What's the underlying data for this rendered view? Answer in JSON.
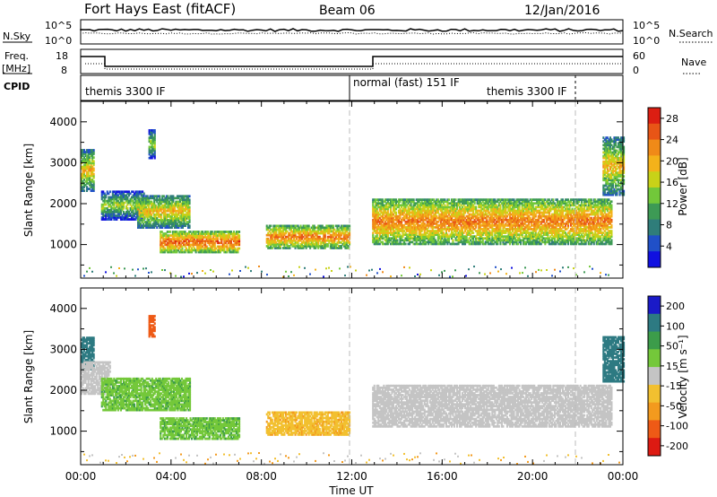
{
  "header": {
    "station": "Fort Hays East (fitACF)",
    "beam": "Beam 06",
    "date": "12/Jan/2016"
  },
  "top_panels": {
    "nsky_label": "N.Sky",
    "nsearch_label": "N.Search",
    "noise_ticks_left": [
      "10^5",
      "10^0"
    ],
    "noise_ticks_right": [
      "10^5",
      "10^0"
    ],
    "freq_label": "Freq.",
    "freq_unit": "[MHz]",
    "freq_ticks": [
      "18",
      "8"
    ],
    "nave_label": "Nave",
    "nave_ticks": [
      "60",
      "0"
    ],
    "cpid_label": "CPID",
    "cpid_segments": [
      {
        "label": "themis 3300 IF"
      },
      {
        "label": "normal (fast) 151 IF"
      },
      {
        "label": "themis 3300 IF"
      }
    ]
  },
  "chart_data": [
    {
      "type": "heatmap",
      "title": "",
      "xlabel": "",
      "ylabel": "Slant Range [km]",
      "xlim_hours": [
        0,
        24
      ],
      "ylim_km": [
        180,
        4500
      ],
      "y_ticks": [
        1000,
        2000,
        3000,
        4000
      ],
      "colorbar": {
        "label": "Power [dB]",
        "ticks": [
          "28",
          "24",
          "20",
          "16",
          "12",
          "8",
          "4"
        ],
        "range": [
          0,
          30
        ],
        "colors": [
          "#1010e0",
          "#2050c8",
          "#2f7d7a",
          "#3d9a55",
          "#72c83a",
          "#c8d218",
          "#f4b21a",
          "#f08a18",
          "#e85516",
          "#dc1e12"
        ]
      },
      "echo_regions": [
        {
          "t_start": 0.0,
          "t_end": 0.6,
          "r_low": 2300,
          "r_high": 3300,
          "power_db": 20
        },
        {
          "t_start": 0.9,
          "t_end": 2.8,
          "r_low": 1600,
          "r_high": 2300,
          "power_db": 16
        },
        {
          "t_start": 2.5,
          "t_end": 4.8,
          "r_low": 1400,
          "r_high": 2200,
          "power_db": 20
        },
        {
          "t_start": 3.0,
          "t_end": 3.3,
          "r_low": 3100,
          "r_high": 3800,
          "power_db": 16
        },
        {
          "t_start": 3.5,
          "t_end": 7.0,
          "r_low": 800,
          "r_high": 1300,
          "power_db": 26
        },
        {
          "t_start": 8.2,
          "t_end": 11.9,
          "r_low": 900,
          "r_high": 1450,
          "power_db": 24
        },
        {
          "t_start": 12.9,
          "t_end": 23.5,
          "r_low": 1000,
          "r_high": 2100,
          "power_db": 24
        },
        {
          "t_start": 23.1,
          "t_end": 24.0,
          "r_low": 2200,
          "r_high": 3600,
          "power_db": 20
        }
      ]
    },
    {
      "type": "heatmap",
      "title": "",
      "xlabel": "Time UT",
      "ylabel": "Slant Range [km]",
      "xlim_hours": [
        0,
        24
      ],
      "ylim_km": [
        180,
        4500
      ],
      "x_ticks": [
        "00:00",
        "04:00",
        "08:00",
        "12:00",
        "16:00",
        "20:00",
        "00:00"
      ],
      "y_ticks": [
        1000,
        2000,
        3000,
        4000
      ],
      "colorbar": {
        "label": "Velocity [m s⁻¹]",
        "ticks": [
          "200",
          "100",
          "50",
          "15",
          "-15",
          "-50",
          "-100",
          "-200"
        ],
        "colors": [
          "#1a1ac8",
          "#2d7a82",
          "#3c9c4a",
          "#74c83a",
          "#c4c4c4",
          "#f2c030",
          "#f39a1e",
          "#ee5a16",
          "#dd1a12"
        ]
      },
      "echo_regions": [
        {
          "t_start": 0.0,
          "t_end": 0.6,
          "r_low": 2500,
          "r_high": 3300,
          "velocity_ms": 150
        },
        {
          "t_start": 0.0,
          "t_end": 1.3,
          "r_low": 1900,
          "r_high": 2700,
          "velocity_ms": 0
        },
        {
          "t_start": 0.9,
          "t_end": 4.8,
          "r_low": 1500,
          "r_high": 2300,
          "velocity_ms": 40
        },
        {
          "t_start": 3.0,
          "t_end": 3.3,
          "r_low": 3300,
          "r_high": 3800,
          "velocity_ms": -200
        },
        {
          "t_start": 3.5,
          "t_end": 7.0,
          "r_low": 800,
          "r_high": 1300,
          "velocity_ms": 40
        },
        {
          "t_start": 8.2,
          "t_end": 11.9,
          "r_low": 900,
          "r_high": 1450,
          "velocity_ms": -40
        },
        {
          "t_start": 12.9,
          "t_end": 23.5,
          "r_low": 1100,
          "r_high": 2100,
          "velocity_ms": 0
        },
        {
          "t_start": 23.1,
          "t_end": 24.0,
          "r_low": 2200,
          "r_high": 3300,
          "velocity_ms": 180
        }
      ]
    }
  ]
}
